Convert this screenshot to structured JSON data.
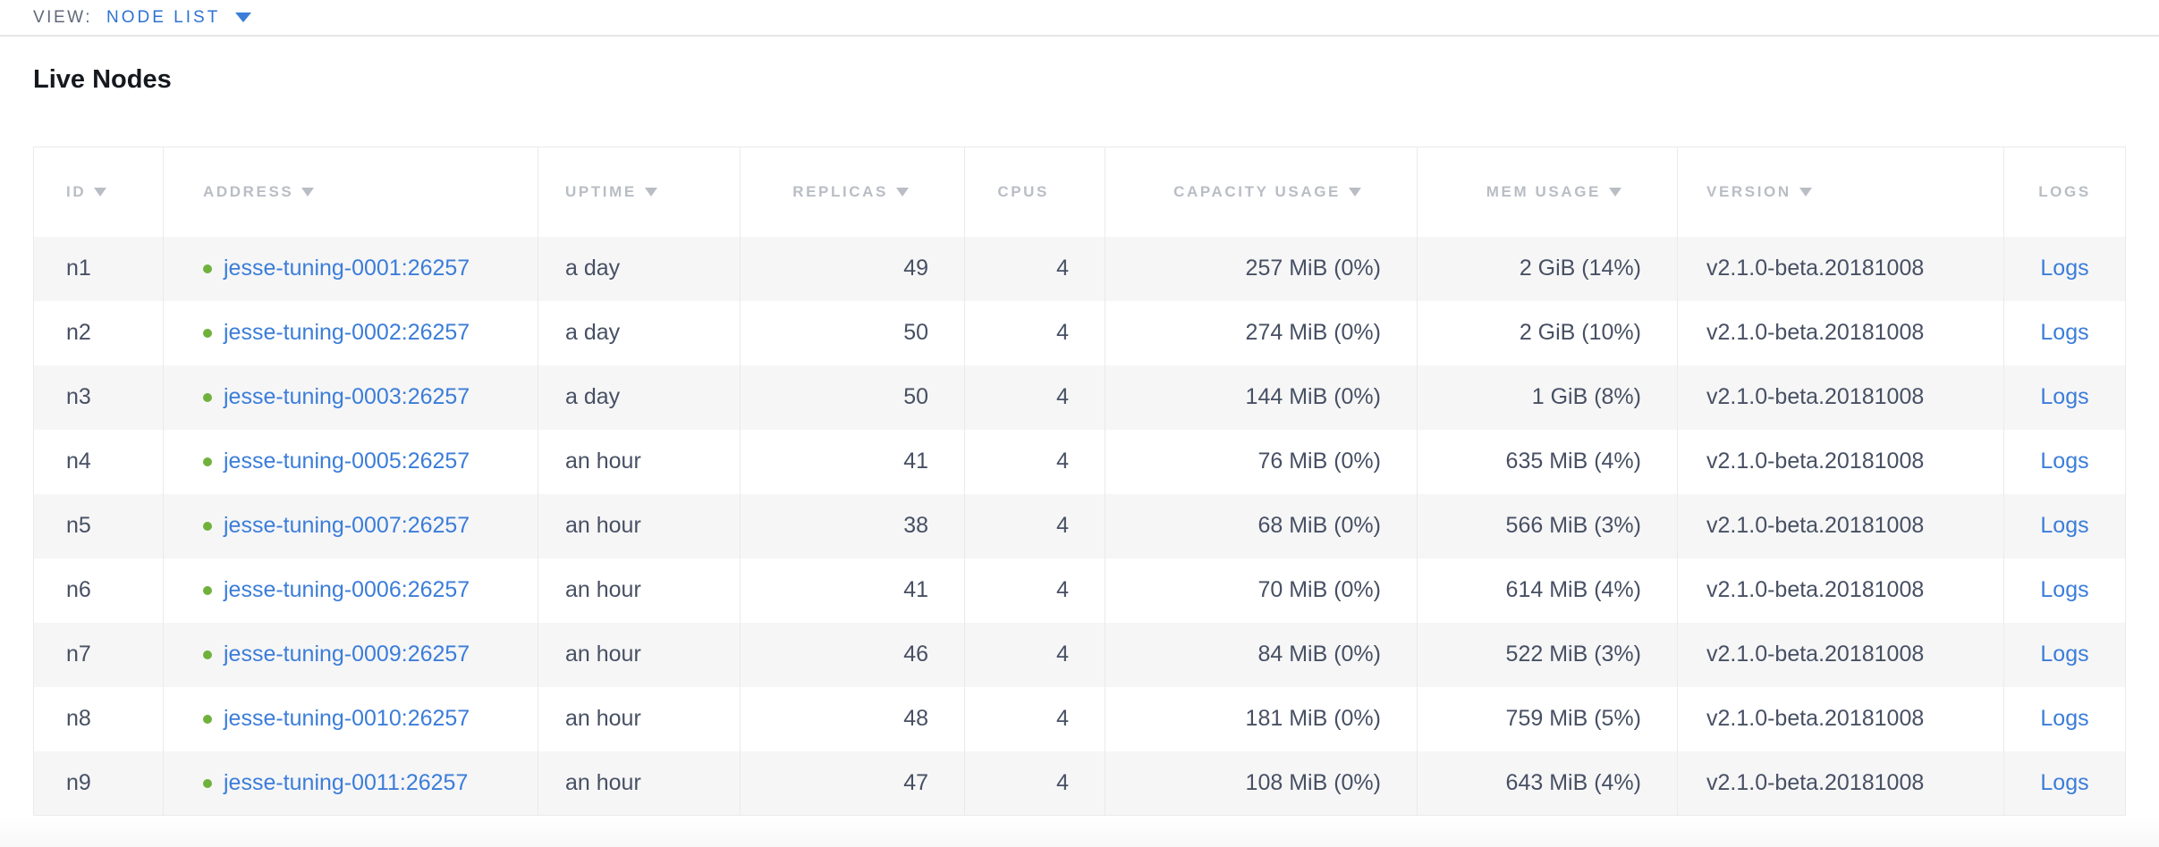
{
  "view_bar": {
    "label": "VIEW:",
    "selected": "NODE LIST"
  },
  "page": {
    "title": "Live Nodes"
  },
  "colors": {
    "link_blue": "#3b7dd9",
    "status_green": "#70b13c",
    "header_text": "#b9bdc4",
    "cell_text": "#47506b",
    "alt_row_bg": "#f6f6f7",
    "border": "#e9eaec"
  },
  "icons": {
    "view_dropdown_caret": "caret-down",
    "column_sort": "triangle-down",
    "node_status": "green-dot"
  },
  "table": {
    "columns": [
      {
        "key": "id",
        "label": "ID",
        "sortable": true
      },
      {
        "key": "address",
        "label": "ADDRESS",
        "sortable": true
      },
      {
        "key": "uptime",
        "label": "UPTIME",
        "sortable": true
      },
      {
        "key": "replicas",
        "label": "REPLICAS",
        "sortable": true
      },
      {
        "key": "cpus",
        "label": "CPUS",
        "sortable": false
      },
      {
        "key": "capacity",
        "label": "CAPACITY USAGE",
        "sortable": true
      },
      {
        "key": "mem",
        "label": "MEM USAGE",
        "sortable": true
      },
      {
        "key": "version",
        "label": "VERSION",
        "sortable": true
      },
      {
        "key": "logs",
        "label": "LOGS",
        "sortable": false
      }
    ],
    "rows": [
      {
        "id": "n1",
        "address": "jesse-tuning-0001:26257",
        "uptime": "a day",
        "replicas": "49",
        "cpus": "4",
        "capacity": "257 MiB (0%)",
        "mem": "2 GiB (14%)",
        "version": "v2.1.0-beta.20181008",
        "logs": "Logs"
      },
      {
        "id": "n2",
        "address": "jesse-tuning-0002:26257",
        "uptime": "a day",
        "replicas": "50",
        "cpus": "4",
        "capacity": "274 MiB (0%)",
        "mem": "2 GiB (10%)",
        "version": "v2.1.0-beta.20181008",
        "logs": "Logs"
      },
      {
        "id": "n3",
        "address": "jesse-tuning-0003:26257",
        "uptime": "a day",
        "replicas": "50",
        "cpus": "4",
        "capacity": "144 MiB (0%)",
        "mem": "1 GiB (8%)",
        "version": "v2.1.0-beta.20181008",
        "logs": "Logs"
      },
      {
        "id": "n4",
        "address": "jesse-tuning-0005:26257",
        "uptime": "an hour",
        "replicas": "41",
        "cpus": "4",
        "capacity": "76 MiB (0%)",
        "mem": "635 MiB (4%)",
        "version": "v2.1.0-beta.20181008",
        "logs": "Logs"
      },
      {
        "id": "n5",
        "address": "jesse-tuning-0007:26257",
        "uptime": "an hour",
        "replicas": "38",
        "cpus": "4",
        "capacity": "68 MiB (0%)",
        "mem": "566 MiB (3%)",
        "version": "v2.1.0-beta.20181008",
        "logs": "Logs"
      },
      {
        "id": "n6",
        "address": "jesse-tuning-0006:26257",
        "uptime": "an hour",
        "replicas": "41",
        "cpus": "4",
        "capacity": "70 MiB (0%)",
        "mem": "614 MiB (4%)",
        "version": "v2.1.0-beta.20181008",
        "logs": "Logs"
      },
      {
        "id": "n7",
        "address": "jesse-tuning-0009:26257",
        "uptime": "an hour",
        "replicas": "46",
        "cpus": "4",
        "capacity": "84 MiB (0%)",
        "mem": "522 MiB (3%)",
        "version": "v2.1.0-beta.20181008",
        "logs": "Logs"
      },
      {
        "id": "n8",
        "address": "jesse-tuning-0010:26257",
        "uptime": "an hour",
        "replicas": "48",
        "cpus": "4",
        "capacity": "181 MiB (0%)",
        "mem": "759 MiB (5%)",
        "version": "v2.1.0-beta.20181008",
        "logs": "Logs"
      },
      {
        "id": "n9",
        "address": "jesse-tuning-0011:26257",
        "uptime": "an hour",
        "replicas": "47",
        "cpus": "4",
        "capacity": "108 MiB (0%)",
        "mem": "643 MiB (4%)",
        "version": "v2.1.0-beta.20181008",
        "logs": "Logs"
      }
    ]
  }
}
